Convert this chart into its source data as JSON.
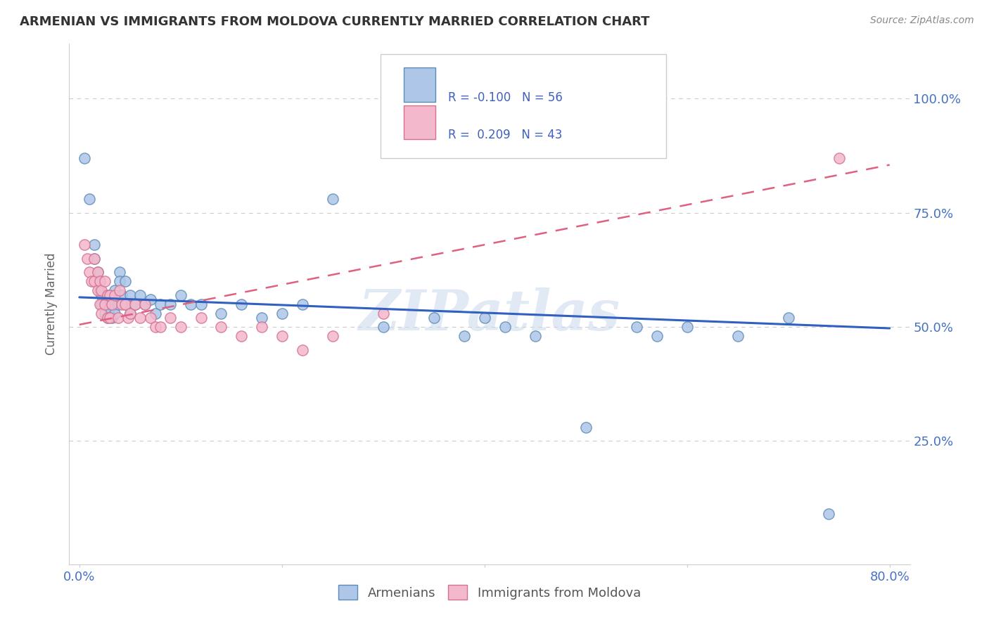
{
  "title": "ARMENIAN VS IMMIGRANTS FROM MOLDOVA CURRENTLY MARRIED CORRELATION CHART",
  "source_text": "Source: ZipAtlas.com",
  "ylabel": "Currently Married",
  "watermark": "ZIPatlas",
  "xlim": [
    -0.01,
    0.82
  ],
  "ylim": [
    -0.02,
    1.12
  ],
  "xticks": [
    0.0,
    0.2,
    0.4,
    0.6,
    0.8
  ],
  "xtick_labels": [
    "0.0%",
    "",
    "",
    "",
    "80.0%"
  ],
  "yticks": [
    0.0,
    0.25,
    0.5,
    0.75,
    1.0
  ],
  "ytick_labels_right": [
    "",
    "25.0%",
    "50.0%",
    "75.0%",
    "100.0%"
  ],
  "armenians_R": -0.1,
  "armenians_N": 56,
  "moldova_R": 0.209,
  "moldova_N": 43,
  "armenian_color": "#aec6e8",
  "armenia_edge_color": "#5b8db8",
  "moldova_color": "#f4b8cc",
  "moldova_edge_color": "#d47090",
  "trend_armenian_color": "#3060c0",
  "trend_moldova_color": "#e06080",
  "armenians_x": [
    0.005,
    0.01,
    0.015,
    0.015,
    0.018,
    0.02,
    0.02,
    0.022,
    0.022,
    0.025,
    0.025,
    0.028,
    0.028,
    0.03,
    0.03,
    0.032,
    0.032,
    0.035,
    0.035,
    0.038,
    0.04,
    0.04,
    0.042,
    0.045,
    0.045,
    0.05,
    0.05,
    0.055,
    0.06,
    0.065,
    0.07,
    0.075,
    0.08,
    0.09,
    0.1,
    0.11,
    0.12,
    0.14,
    0.16,
    0.18,
    0.2,
    0.22,
    0.25,
    0.3,
    0.35,
    0.38,
    0.4,
    0.42,
    0.45,
    0.5,
    0.55,
    0.57,
    0.6,
    0.65,
    0.7,
    0.74
  ],
  "armenians_y": [
    0.87,
    0.78,
    0.68,
    0.65,
    0.62,
    0.6,
    0.58,
    0.57,
    0.55,
    0.55,
    0.53,
    0.55,
    0.52,
    0.57,
    0.54,
    0.55,
    0.52,
    0.58,
    0.53,
    0.55,
    0.62,
    0.6,
    0.57,
    0.6,
    0.55,
    0.57,
    0.53,
    0.55,
    0.57,
    0.55,
    0.56,
    0.53,
    0.55,
    0.55,
    0.57,
    0.55,
    0.55,
    0.53,
    0.55,
    0.52,
    0.53,
    0.55,
    0.78,
    0.5,
    0.52,
    0.48,
    0.52,
    0.5,
    0.48,
    0.28,
    0.5,
    0.48,
    0.5,
    0.48,
    0.52,
    0.09
  ],
  "moldova_x": [
    0.005,
    0.008,
    0.01,
    0.012,
    0.015,
    0.015,
    0.018,
    0.018,
    0.02,
    0.02,
    0.022,
    0.022,
    0.025,
    0.025,
    0.028,
    0.028,
    0.03,
    0.03,
    0.032,
    0.035,
    0.038,
    0.04,
    0.042,
    0.045,
    0.048,
    0.05,
    0.055,
    0.06,
    0.065,
    0.07,
    0.075,
    0.08,
    0.09,
    0.1,
    0.12,
    0.14,
    0.16,
    0.18,
    0.2,
    0.22,
    0.25,
    0.3,
    0.75
  ],
  "moldova_y": [
    0.68,
    0.65,
    0.62,
    0.6,
    0.65,
    0.6,
    0.62,
    0.58,
    0.6,
    0.55,
    0.58,
    0.53,
    0.6,
    0.55,
    0.57,
    0.52,
    0.57,
    0.52,
    0.55,
    0.57,
    0.52,
    0.58,
    0.55,
    0.55,
    0.52,
    0.53,
    0.55,
    0.52,
    0.55,
    0.52,
    0.5,
    0.5,
    0.52,
    0.5,
    0.52,
    0.5,
    0.48,
    0.5,
    0.48,
    0.45,
    0.48,
    0.53,
    0.87
  ],
  "trend_arm_x0": 0.0,
  "trend_arm_x1": 0.8,
  "trend_arm_y0": 0.565,
  "trend_arm_y1": 0.497,
  "trend_mol_x0": 0.0,
  "trend_mol_x1": 0.8,
  "trend_mol_y0": 0.505,
  "trend_mol_y1": 0.855
}
